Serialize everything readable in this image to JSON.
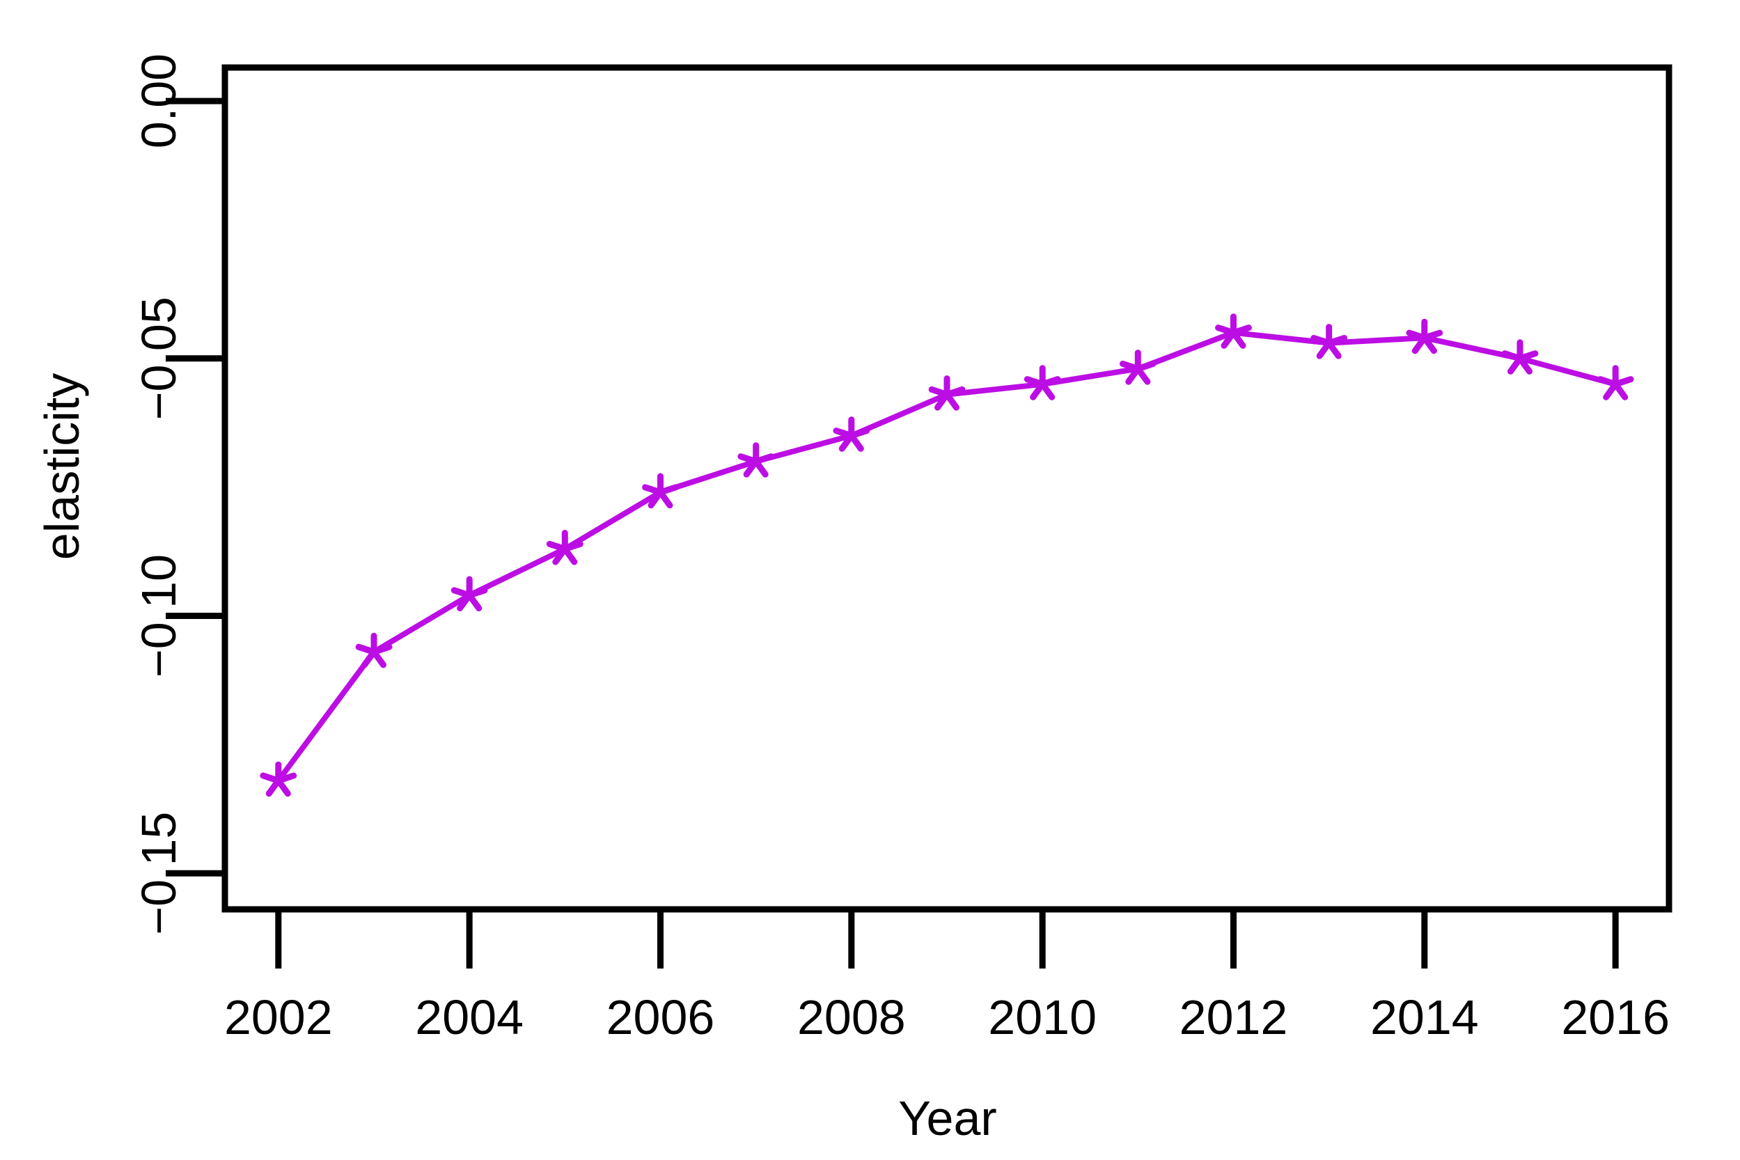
{
  "chart_data": {
    "type": "line",
    "title": "",
    "xlabel": "Year",
    "ylabel": "elasticity",
    "x": [
      2002,
      2003,
      2004,
      2005,
      2006,
      2007,
      2008,
      2009,
      2010,
      2011,
      2012,
      2013,
      2014,
      2015,
      2016
    ],
    "series": [
      {
        "name": "elasticity",
        "values": [
          -0.132,
          -0.107,
          -0.096,
          -0.087,
          -0.076,
          -0.07,
          -0.065,
          -0.057,
          -0.055,
          -0.052,
          -0.045,
          -0.047,
          -0.046,
          -0.05,
          -0.055
        ]
      }
    ],
    "xticks": [
      2002,
      2004,
      2006,
      2008,
      2010,
      2012,
      2014,
      2016
    ],
    "xtick_labels": [
      "2002",
      "2004",
      "2006",
      "2008",
      "2010",
      "2012",
      "2014",
      "2016"
    ],
    "yticks": [
      0.0,
      -0.05,
      -0.1,
      -0.15
    ],
    "ytick_labels": [
      "0.00",
      "−0.05",
      "−0.10",
      "−0.15"
    ],
    "xlim": [
      2001.44,
      2016.56
    ],
    "ylim": [
      -0.157,
      0.0065
    ],
    "grid": false,
    "legend_position": "none",
    "line_color": "#BC0EE4",
    "axis_color": "#000000",
    "background_color": "#FFFFFF",
    "marker": "asterisk-5-spoke"
  }
}
